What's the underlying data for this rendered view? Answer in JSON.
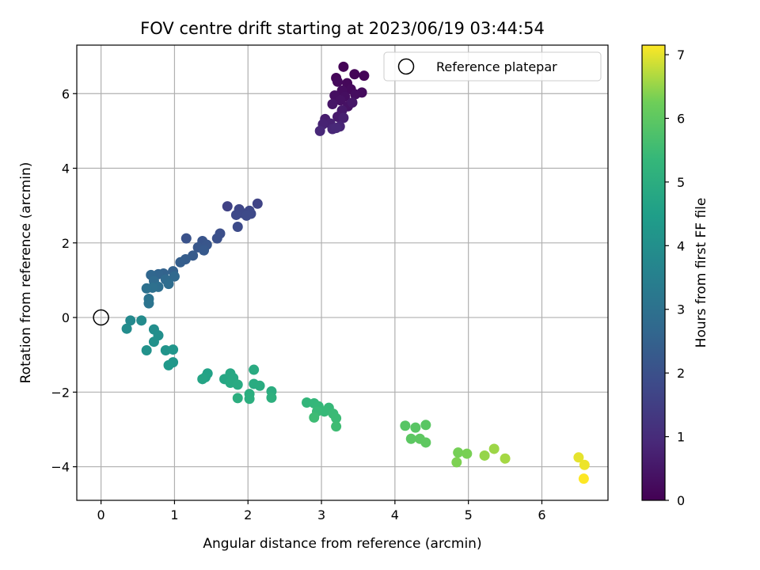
{
  "chart_data": {
    "type": "scatter",
    "title": "FOV centre drift starting at 2023/06/19 03:44:54",
    "xlabel": "Angular distance from reference (arcmin)",
    "ylabel": "Rotation from reference (arcmin)",
    "xlim": [
      -0.33,
      6.9
    ],
    "ylim": [
      -4.9,
      7.3
    ],
    "xticks": [
      0,
      1,
      2,
      3,
      4,
      5,
      6
    ],
    "yticks": [
      -4,
      -2,
      0,
      2,
      4,
      6
    ],
    "grid": true,
    "legend": {
      "placement": "top-right",
      "entries": [
        "Reference platepar"
      ]
    },
    "reference_point": {
      "name": "Reference platepar",
      "x": 0,
      "y": 0
    },
    "colorbar": {
      "label": "Hours from first FF file",
      "colormap": "viridis",
      "range": [
        0,
        7.15
      ],
      "ticks": [
        0,
        1,
        2,
        3,
        4,
        5,
        6,
        7
      ]
    },
    "series": [
      {
        "points": [
          {
            "x": 3.3,
            "y": 6.72,
            "c": 0.05
          },
          {
            "x": 3.45,
            "y": 6.52,
            "c": 0.08
          },
          {
            "x": 3.58,
            "y": 6.48,
            "c": 0.1
          },
          {
            "x": 3.2,
            "y": 6.42,
            "c": 0.12
          },
          {
            "x": 3.35,
            "y": 6.28,
            "c": 0.15
          },
          {
            "x": 3.22,
            "y": 6.32,
            "c": 0.18
          },
          {
            "x": 3.4,
            "y": 6.12,
            "c": 0.2
          },
          {
            "x": 3.55,
            "y": 6.03,
            "c": 0.22
          },
          {
            "x": 3.28,
            "y": 6.08,
            "c": 0.25
          },
          {
            "x": 3.46,
            "y": 5.98,
            "c": 0.28
          },
          {
            "x": 3.32,
            "y": 5.92,
            "c": 0.3
          },
          {
            "x": 3.18,
            "y": 5.95,
            "c": 0.33
          },
          {
            "x": 3.26,
            "y": 5.82,
            "c": 0.36
          },
          {
            "x": 3.36,
            "y": 5.66,
            "c": 0.4
          },
          {
            "x": 3.15,
            "y": 5.72,
            "c": 0.45
          },
          {
            "x": 3.42,
            "y": 5.76,
            "c": 0.5
          },
          {
            "x": 3.28,
            "y": 5.55,
            "c": 0.55
          },
          {
            "x": 3.22,
            "y": 5.38,
            "c": 0.6
          },
          {
            "x": 3.05,
            "y": 5.32,
            "c": 0.65
          },
          {
            "x": 3.3,
            "y": 5.35,
            "c": 0.7
          },
          {
            "x": 3.12,
            "y": 5.2,
            "c": 0.75
          },
          {
            "x": 3.02,
            "y": 5.18,
            "c": 0.78
          },
          {
            "x": 3.25,
            "y": 5.12,
            "c": 0.82
          },
          {
            "x": 3.15,
            "y": 5.05,
            "c": 0.86
          },
          {
            "x": 2.98,
            "y": 5.0,
            "c": 0.9
          },
          {
            "x": 3.2,
            "y": 5.08,
            "c": 0.92
          },
          {
            "x": 1.72,
            "y": 2.98,
            "c": 1.6
          },
          {
            "x": 2.13,
            "y": 3.05,
            "c": 1.65
          },
          {
            "x": 1.88,
            "y": 2.9,
            "c": 1.7
          },
          {
            "x": 2.02,
            "y": 2.86,
            "c": 1.72
          },
          {
            "x": 1.92,
            "y": 2.8,
            "c": 1.75
          },
          {
            "x": 1.84,
            "y": 2.75,
            "c": 1.78
          },
          {
            "x": 2.04,
            "y": 2.78,
            "c": 1.8
          },
          {
            "x": 1.98,
            "y": 2.73,
            "c": 1.82
          },
          {
            "x": 1.86,
            "y": 2.43,
            "c": 1.85
          },
          {
            "x": 1.62,
            "y": 2.25,
            "c": 1.95
          },
          {
            "x": 1.58,
            "y": 2.12,
            "c": 2.0
          },
          {
            "x": 1.16,
            "y": 2.12,
            "c": 2.05
          },
          {
            "x": 1.38,
            "y": 2.05,
            "c": 2.1
          },
          {
            "x": 1.44,
            "y": 1.95,
            "c": 2.15
          },
          {
            "x": 1.32,
            "y": 1.88,
            "c": 2.2
          },
          {
            "x": 1.4,
            "y": 1.8,
            "c": 2.25
          },
          {
            "x": 1.25,
            "y": 1.66,
            "c": 2.3
          },
          {
            "x": 1.15,
            "y": 1.56,
            "c": 2.35
          },
          {
            "x": 1.08,
            "y": 1.48,
            "c": 2.4
          },
          {
            "x": 0.98,
            "y": 1.24,
            "c": 2.5
          },
          {
            "x": 0.85,
            "y": 1.18,
            "c": 2.55
          },
          {
            "x": 0.78,
            "y": 1.16,
            "c": 2.6
          },
          {
            "x": 0.68,
            "y": 1.14,
            "c": 2.65
          },
          {
            "x": 1.0,
            "y": 1.1,
            "c": 2.7
          },
          {
            "x": 0.88,
            "y": 1.02,
            "c": 2.75
          },
          {
            "x": 0.72,
            "y": 0.98,
            "c": 2.8
          },
          {
            "x": 0.92,
            "y": 0.9,
            "c": 2.85
          },
          {
            "x": 0.78,
            "y": 0.82,
            "c": 2.9
          },
          {
            "x": 0.7,
            "y": 0.8,
            "c": 2.95
          },
          {
            "x": 0.62,
            "y": 0.78,
            "c": 3.0
          },
          {
            "x": 0.65,
            "y": 0.5,
            "c": 3.05
          },
          {
            "x": 0.65,
            "y": 0.38,
            "c": 3.1
          },
          {
            "x": 0.4,
            "y": -0.08,
            "c": 3.8
          },
          {
            "x": 0.55,
            "y": -0.08,
            "c": 3.85
          },
          {
            "x": 0.35,
            "y": -0.3,
            "c": 3.9
          },
          {
            "x": 0.72,
            "y": -0.32,
            "c": 3.95
          },
          {
            "x": 0.78,
            "y": -0.48,
            "c": 4.0
          },
          {
            "x": 0.72,
            "y": -0.65,
            "c": 4.05
          },
          {
            "x": 0.62,
            "y": -0.88,
            "c": 4.1
          },
          {
            "x": 0.88,
            "y": -0.88,
            "c": 4.15
          },
          {
            "x": 0.98,
            "y": -0.86,
            "c": 4.2
          },
          {
            "x": 0.98,
            "y": -1.2,
            "c": 4.25
          },
          {
            "x": 0.92,
            "y": -1.28,
            "c": 4.3
          },
          {
            "x": 1.45,
            "y": -1.5,
            "c": 4.6
          },
          {
            "x": 1.42,
            "y": -1.6,
            "c": 4.65
          },
          {
            "x": 1.38,
            "y": -1.65,
            "c": 4.7
          },
          {
            "x": 1.68,
            "y": -1.65,
            "c": 4.75
          },
          {
            "x": 1.76,
            "y": -1.5,
            "c": 4.8
          },
          {
            "x": 1.8,
            "y": -1.62,
            "c": 4.82
          },
          {
            "x": 1.76,
            "y": -1.75,
            "c": 4.85
          },
          {
            "x": 1.86,
            "y": -1.8,
            "c": 4.88
          },
          {
            "x": 2.08,
            "y": -1.4,
            "c": 4.9
          },
          {
            "x": 2.08,
            "y": -1.78,
            "c": 4.92
          },
          {
            "x": 2.16,
            "y": -1.83,
            "c": 4.95
          },
          {
            "x": 2.32,
            "y": -1.98,
            "c": 4.98
          },
          {
            "x": 2.02,
            "y": -2.05,
            "c": 5.0
          },
          {
            "x": 1.86,
            "y": -2.16,
            "c": 5.02
          },
          {
            "x": 2.02,
            "y": -2.18,
            "c": 5.05
          },
          {
            "x": 2.32,
            "y": -2.15,
            "c": 5.08
          },
          {
            "x": 2.8,
            "y": -2.28,
            "c": 5.3
          },
          {
            "x": 2.9,
            "y": -2.3,
            "c": 5.32
          },
          {
            "x": 2.96,
            "y": -2.38,
            "c": 5.35
          },
          {
            "x": 3.1,
            "y": -2.42,
            "c": 5.38
          },
          {
            "x": 3.04,
            "y": -2.52,
            "c": 5.4
          },
          {
            "x": 2.94,
            "y": -2.52,
            "c": 5.42
          },
          {
            "x": 3.16,
            "y": -2.58,
            "c": 5.45
          },
          {
            "x": 3.2,
            "y": -2.7,
            "c": 5.48
          },
          {
            "x": 2.9,
            "y": -2.68,
            "c": 5.5
          },
          {
            "x": 3.2,
            "y": -2.92,
            "c": 5.52
          },
          {
            "x": 4.14,
            "y": -2.9,
            "c": 5.9
          },
          {
            "x": 4.28,
            "y": -2.95,
            "c": 5.92
          },
          {
            "x": 4.42,
            "y": -2.88,
            "c": 5.95
          },
          {
            "x": 4.22,
            "y": -3.25,
            "c": 5.98
          },
          {
            "x": 4.34,
            "y": -3.25,
            "c": 6.0
          },
          {
            "x": 4.42,
            "y": -3.35,
            "c": 6.02
          },
          {
            "x": 4.86,
            "y": -3.62,
            "c": 6.3
          },
          {
            "x": 4.98,
            "y": -3.65,
            "c": 6.32
          },
          {
            "x": 4.84,
            "y": -3.88,
            "c": 6.35
          },
          {
            "x": 5.22,
            "y": -3.7,
            "c": 6.5
          },
          {
            "x": 5.35,
            "y": -3.52,
            "c": 6.55
          },
          {
            "x": 5.5,
            "y": -3.78,
            "c": 6.6
          },
          {
            "x": 6.5,
            "y": -3.75,
            "c": 7.0
          },
          {
            "x": 6.58,
            "y": -3.95,
            "c": 7.05
          },
          {
            "x": 6.57,
            "y": -4.32,
            "c": 7.15
          }
        ]
      }
    ]
  }
}
